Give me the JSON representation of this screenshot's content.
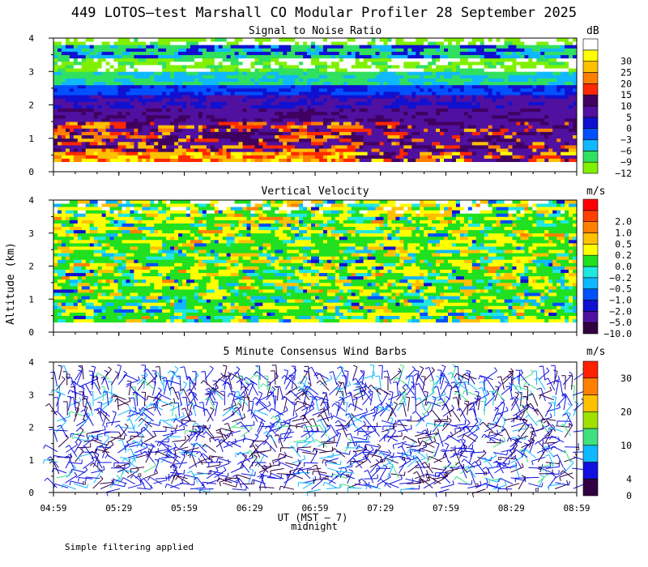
{
  "title": "449 LOTOS–test Marshall CO Modular Profiler 28 September 2025",
  "ylabel": "Altitude (km)",
  "xlabel": "UT (MST – 7)",
  "midnight_label": "midnight",
  "footer": "Simple filtering applied",
  "chart_data": [
    {
      "type": "heatmap",
      "title": "Signal to Noise Ratio",
      "units": "dB",
      "x_ticks": [
        "04:59",
        "05:29",
        "05:59",
        "06:29",
        "06:59",
        "07:29",
        "07:59",
        "08:29",
        "08:59"
      ],
      "xlim": [
        "04:59",
        "08:59"
      ],
      "ylim": [
        0,
        4
      ],
      "y_ticks": [
        0,
        1,
        2,
        3,
        4
      ],
      "colorbar": [
        {
          "label": "−12",
          "color": "#80f000"
        },
        {
          "label": "−9",
          "color": "#30e060"
        },
        {
          "label": "−6",
          "color": "#10b8ff"
        },
        {
          "label": "−3",
          "color": "#0050ff"
        },
        {
          "label": "0",
          "color": "#1010d0"
        },
        {
          "label": "5",
          "color": "#5010a0"
        },
        {
          "label": "10",
          "color": "#400060"
        },
        {
          "label": "15",
          "color": "#ff2800"
        },
        {
          "label": "20",
          "color": "#ff8000"
        },
        {
          "label": "25",
          "color": "#ffc000"
        },
        {
          "label": "30",
          "color": "#ffff00"
        },
        {
          "label": "",
          "color": "#ffffff"
        }
      ]
    },
    {
      "type": "heatmap",
      "title": "Vertical Velocity",
      "units": "m/s",
      "x_ticks": [
        "04:59",
        "05:29",
        "05:59",
        "06:29",
        "06:59",
        "07:29",
        "07:59",
        "08:29",
        "08:59"
      ],
      "xlim": [
        "04:59",
        "08:59"
      ],
      "ylim": [
        0,
        4
      ],
      "y_ticks": [
        0,
        1,
        2,
        3,
        4
      ],
      "colorbar": [
        {
          "label": "−10.0",
          "color": "#300040"
        },
        {
          "label": "−5.0",
          "color": "#5010a0"
        },
        {
          "label": "−2.0",
          "color": "#1010d0"
        },
        {
          "label": "−1.0",
          "color": "#0050ff"
        },
        {
          "label": "−0.5",
          "color": "#10b8ff"
        },
        {
          "label": "−0.2",
          "color": "#20e8e0"
        },
        {
          "label": "0.0",
          "color": "#20e020"
        },
        {
          "label": "0.2",
          "color": "#ffff00"
        },
        {
          "label": "0.5",
          "color": "#ffc000"
        },
        {
          "label": "1.0",
          "color": "#ff8000"
        },
        {
          "label": "2.0",
          "color": "#ff4000"
        },
        {
          "label": "",
          "color": "#ff0000"
        }
      ]
    },
    {
      "type": "wind_barbs",
      "title": "5 Minute Consensus Wind Barbs",
      "units": "m/s",
      "x_ticks": [
        "04:59",
        "05:29",
        "05:59",
        "06:29",
        "06:59",
        "07:29",
        "07:59",
        "08:29",
        "08:59"
      ],
      "xlim": [
        "04:59",
        "08:59"
      ],
      "ylim": [
        0,
        4
      ],
      "y_ticks": [
        0,
        1,
        2,
        3,
        4
      ],
      "colorbar": [
        {
          "label": "0",
          "color": "#300040"
        },
        {
          "label": "4",
          "color": "#1010e0"
        },
        {
          "label": "",
          "color": "#10b8ff"
        },
        {
          "label": "10",
          "color": "#40e080"
        },
        {
          "label": "",
          "color": "#a0e000"
        },
        {
          "label": "20",
          "color": "#ffc000"
        },
        {
          "label": "",
          "color": "#ff8000"
        },
        {
          "label": "30",
          "color": "#ff2000"
        }
      ]
    }
  ]
}
